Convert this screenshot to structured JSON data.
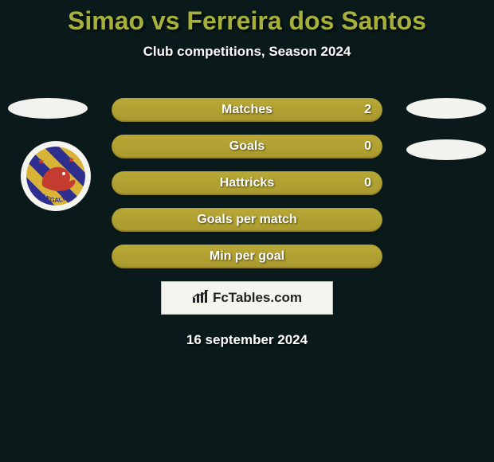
{
  "title": {
    "text": "Simao vs Ferreira dos Santos",
    "fontsize": 32,
    "color": "#a6b03a"
  },
  "subtitle": {
    "text": "Club competitions, Season 2024",
    "fontsize": 17,
    "color": "#ffffff"
  },
  "background_color": "#0a1a1a",
  "side_badges": {
    "width": 100,
    "height": 26,
    "color": "#f2f2ee"
  },
  "club_logo": {
    "outer_bg": "#f5f5f0",
    "stripes": [
      "#2e2f8f",
      "#d9b338"
    ],
    "bird_color": "#c43b2f",
    "label": "VEGALTA"
  },
  "stats": {
    "bar_bg": "#aa9a2e",
    "bar_bg_light": "#b8a836",
    "label_color": "#ffffff",
    "label_fontsize": 16,
    "value_fontsize": 16,
    "rows": [
      {
        "label": "Matches",
        "right": "2"
      },
      {
        "label": "Goals",
        "right": "0"
      },
      {
        "label": "Hattricks",
        "right": "0"
      },
      {
        "label": "Goals per match",
        "right": ""
      },
      {
        "label": "Min per goal",
        "right": ""
      }
    ]
  },
  "watermark": {
    "text": "FcTables.com",
    "fontsize": 17,
    "color": "#222222",
    "box_bg": "#f5f5f0"
  },
  "date": {
    "text": "16 september 2024",
    "fontsize": 17,
    "color": "#ffffff"
  }
}
